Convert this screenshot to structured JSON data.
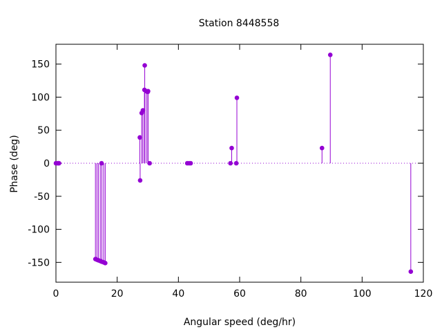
{
  "chart_data": {
    "type": "scatter",
    "style": "impulses-with-points",
    "title": "Station 8448558",
    "xlabel": "Angular speed (deg/hr)",
    "ylabel": "Phase (deg)",
    "xlim": [
      0,
      120
    ],
    "ylim": [
      -180,
      180
    ],
    "xticks": [
      0,
      20,
      40,
      60,
      80,
      100,
      120
    ],
    "yticks": [
      -150,
      -100,
      -50,
      0,
      50,
      100,
      150
    ],
    "zero_line": true,
    "grid": false,
    "color": "#9400d3",
    "series": [
      {
        "points": [
          {
            "x": 0.0,
            "y": 0
          },
          {
            "x": 0.5,
            "y": 0
          },
          {
            "x": 0.8,
            "y": 0
          },
          {
            "x": 1.0,
            "y": 0
          },
          {
            "x": 12.9,
            "y": -145
          },
          {
            "x": 13.4,
            "y": -146
          },
          {
            "x": 13.9,
            "y": -147
          },
          {
            "x": 14.5,
            "y": -148
          },
          {
            "x": 14.9,
            "y": 0
          },
          {
            "x": 15.0,
            "y": -149
          },
          {
            "x": 15.6,
            "y": -150
          },
          {
            "x": 16.1,
            "y": -151
          },
          {
            "x": 27.4,
            "y": 39
          },
          {
            "x": 27.5,
            "y": -26
          },
          {
            "x": 28.0,
            "y": 76
          },
          {
            "x": 28.4,
            "y": 80
          },
          {
            "x": 28.9,
            "y": 111
          },
          {
            "x": 29.0,
            "y": 148
          },
          {
            "x": 29.5,
            "y": 109
          },
          {
            "x": 30.0,
            "y": 108
          },
          {
            "x": 30.1,
            "y": 109
          },
          {
            "x": 30.6,
            "y": 0
          },
          {
            "x": 42.9,
            "y": 0
          },
          {
            "x": 43.5,
            "y": 0
          },
          {
            "x": 44.0,
            "y": 0
          },
          {
            "x": 57.0,
            "y": 0
          },
          {
            "x": 57.4,
            "y": 23
          },
          {
            "x": 58.9,
            "y": 0
          },
          {
            "x": 59.1,
            "y": 99
          },
          {
            "x": 86.9,
            "y": 23
          },
          {
            "x": 89.6,
            "y": 164
          },
          {
            "x": 115.9,
            "y": -164
          }
        ]
      }
    ]
  }
}
